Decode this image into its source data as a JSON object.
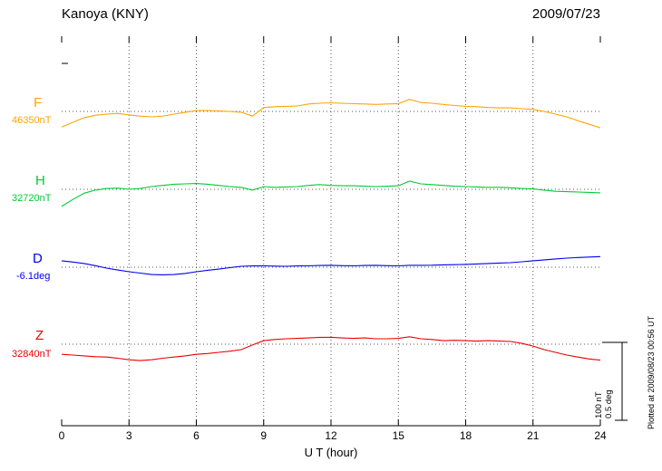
{
  "header": {
    "title": "Kanoya (KNY)",
    "date": "2009/07/23"
  },
  "axis": {
    "xlabel": "U T (hour)",
    "x_ticks": [
      0,
      3,
      6,
      9,
      12,
      15,
      18,
      21,
      24
    ]
  },
  "scale_bar": {
    "nT_label": "100 nT",
    "deg_label": "0.5 deg",
    "nT_value": 100,
    "deg_value": 0.5
  },
  "footer_note": "Plotted at 2009/08/23 00:56 UT",
  "chart_data": {
    "type": "line",
    "title": "Kanoya (KNY) magnetogram 2009/07/23",
    "xlabel": "U T (hour)",
    "x_start": 0,
    "x_step": 0.5,
    "x_end": 24,
    "x_ticks": [
      0,
      3,
      6,
      9,
      12,
      15,
      18,
      21,
      24
    ],
    "grid": "dotted",
    "values_are": "offset from baseline value, in series unit",
    "series": [
      {
        "name": "F",
        "unit": "nT",
        "baseline_label": "46350nT",
        "baseline_value": 46350,
        "color": "#FFA500",
        "values": [
          -20,
          -14,
          -8,
          -5,
          -3.5,
          -2.5,
          -4.5,
          -6,
          -7,
          -6,
          -3.5,
          -1,
          1,
          1,
          0.5,
          0,
          -1,
          -6,
          5,
          6,
          6.5,
          7,
          9.5,
          10.5,
          11,
          10.5,
          10,
          9.5,
          9,
          9.5,
          10,
          15.5,
          11.5,
          10.5,
          9,
          7.5,
          6.5,
          6,
          5,
          4.5,
          4.5,
          3.5,
          2.5,
          0,
          -3.5,
          -7,
          -12,
          -16.5,
          -21
        ]
      },
      {
        "name": "H",
        "unit": "nT",
        "baseline_label": "32720nT",
        "baseline_value": 32720,
        "color": "#00CC33",
        "values": [
          -22,
          -13,
          -5,
          -1,
          1,
          1.5,
          0,
          1,
          3.5,
          5,
          6.5,
          7,
          7.5,
          6.5,
          5,
          3.5,
          2.5,
          -1,
          3.5,
          2.5,
          3,
          3.5,
          5,
          6,
          5,
          4.5,
          4.5,
          4,
          3.5,
          4,
          4.5,
          10.5,
          7,
          6,
          5,
          4,
          3.5,
          3,
          2.5,
          2.5,
          2,
          1,
          0.5,
          -1,
          -2.5,
          -3,
          -3.5,
          -4,
          -4.5
        ]
      },
      {
        "name": "D",
        "unit": "deg",
        "baseline_label": "-6.1deg",
        "baseline_value": -6.1,
        "color": "#0000EE",
        "values": [
          0.041,
          0.033,
          0.024,
          0.01,
          -0.006,
          -0.018,
          -0.029,
          -0.038,
          -0.047,
          -0.049,
          -0.047,
          -0.04,
          -0.029,
          -0.02,
          -0.012,
          -0.003,
          0.006,
          0.008,
          0.009,
          0.007,
          0.006,
          0.008,
          0.009,
          0.011,
          0.012,
          0.01,
          0.009,
          0.011,
          0.012,
          0.01,
          0.009,
          0.012,
          0.012,
          0.013,
          0.015,
          0.016,
          0.018,
          0.021,
          0.024,
          0.027,
          0.029,
          0.035,
          0.041,
          0.047,
          0.053,
          0.058,
          0.062,
          0.065,
          0.068
        ]
      },
      {
        "name": "Z",
        "unit": "nT",
        "baseline_label": "32840nT",
        "baseline_value": 32840,
        "color": "#EE0000",
        "values": [
          -13,
          -14,
          -15,
          -16,
          -16.5,
          -18,
          -20,
          -21,
          -20,
          -18,
          -16.5,
          -15,
          -13,
          -12,
          -10.5,
          -9,
          -7,
          -1,
          4.5,
          6,
          7,
          7.5,
          8,
          8.8,
          8.8,
          8,
          7.5,
          8,
          7,
          7,
          7.5,
          9.5,
          7,
          6,
          4.5,
          5,
          4.5,
          4,
          4.5,
          4,
          3.5,
          1,
          -2.5,
          -7,
          -10.5,
          -14,
          -16.5,
          -19,
          -20.5
        ]
      }
    ],
    "scale": {
      "bar_nT": 100,
      "bar_deg": 0.5
    }
  }
}
